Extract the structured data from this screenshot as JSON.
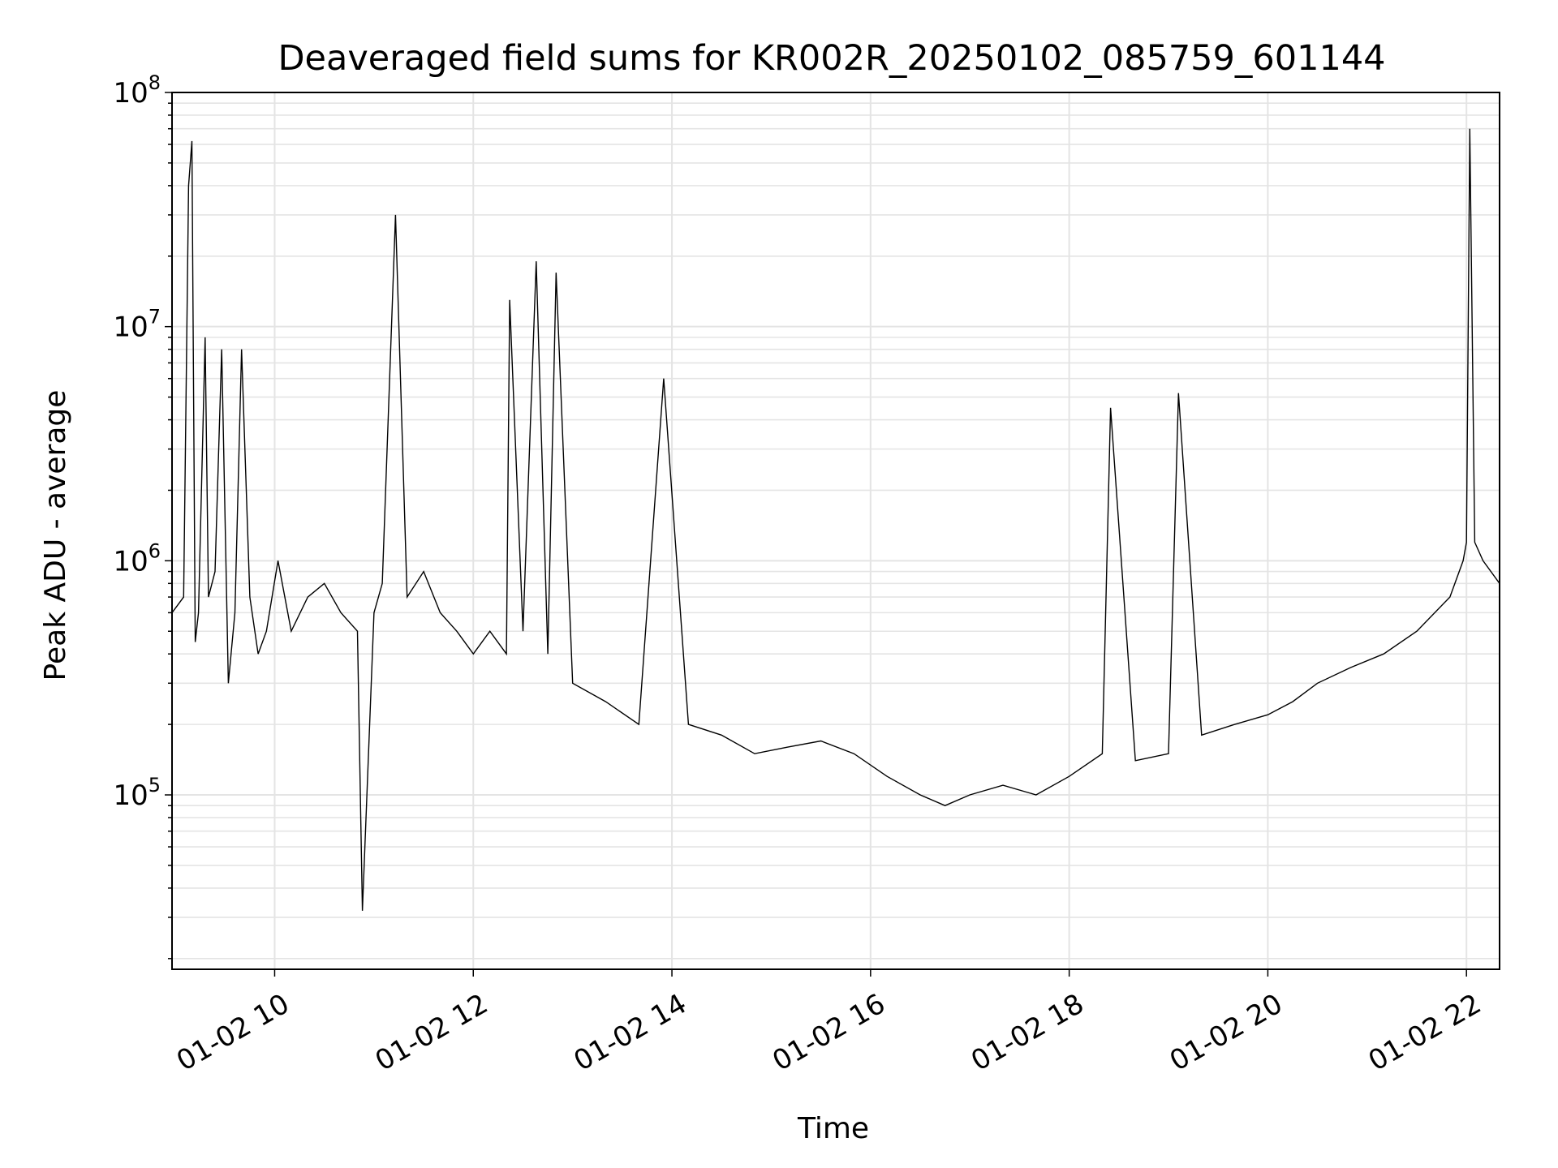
{
  "chart_data": {
    "type": "line",
    "title": "Deaveraged field sums for KR002R_20250102_085759_601144",
    "xlabel": "Time",
    "ylabel": "Peak ADU - average",
    "y_scale": "log",
    "ylim": [
      18000,
      100000000
    ],
    "xlim": [
      "2025-01-02 08:58",
      "2025-01-02 22:20"
    ],
    "grid": true,
    "line_color": "#000000",
    "x_ticks": [
      {
        "time": "2025-01-02 10:00",
        "label": "01-02 10"
      },
      {
        "time": "2025-01-02 12:00",
        "label": "01-02 12"
      },
      {
        "time": "2025-01-02 14:00",
        "label": "01-02 14"
      },
      {
        "time": "2025-01-02 16:00",
        "label": "01-02 16"
      },
      {
        "time": "2025-01-02 18:00",
        "label": "01-02 18"
      },
      {
        "time": "2025-01-02 20:00",
        "label": "01-02 20"
      },
      {
        "time": "2025-01-02 22:00",
        "label": "01-02 22"
      }
    ],
    "y_ticks": [
      {
        "value": 100000,
        "base": "10",
        "exp": "5"
      },
      {
        "value": 1000000,
        "base": "10",
        "exp": "6"
      },
      {
        "value": 10000000,
        "base": "10",
        "exp": "7"
      },
      {
        "value": 100000000,
        "base": "10",
        "exp": "8"
      }
    ],
    "series": [
      {
        "x": [
          "2025-01-02 08:58",
          "2025-01-02 09:05",
          "2025-01-02 09:08",
          "2025-01-02 09:10",
          "2025-01-02 09:12",
          "2025-01-02 09:14",
          "2025-01-02 09:18",
          "2025-01-02 09:20",
          "2025-01-02 09:24",
          "2025-01-02 09:28",
          "2025-01-02 09:32",
          "2025-01-02 09:36",
          "2025-01-02 09:40",
          "2025-01-02 09:45",
          "2025-01-02 09:50",
          "2025-01-02 09:55",
          "2025-01-02 10:02",
          "2025-01-02 10:10",
          "2025-01-02 10:20",
          "2025-01-02 10:30",
          "2025-01-02 10:40",
          "2025-01-02 10:50",
          "2025-01-02 10:53",
          "2025-01-02 11:00",
          "2025-01-02 11:05",
          "2025-01-02 11:13",
          "2025-01-02 11:20",
          "2025-01-02 11:30",
          "2025-01-02 11:40",
          "2025-01-02 11:50",
          "2025-01-02 12:00",
          "2025-01-02 12:10",
          "2025-01-02 12:20",
          "2025-01-02 12:22",
          "2025-01-02 12:30",
          "2025-01-02 12:38",
          "2025-01-02 12:45",
          "2025-01-02 12:50",
          "2025-01-02 13:00",
          "2025-01-02 13:20",
          "2025-01-02 13:40",
          "2025-01-02 13:55",
          "2025-01-02 14:10",
          "2025-01-02 14:30",
          "2025-01-02 14:50",
          "2025-01-02 15:10",
          "2025-01-02 15:30",
          "2025-01-02 15:50",
          "2025-01-02 16:10",
          "2025-01-02 16:30",
          "2025-01-02 16:45",
          "2025-01-02 17:00",
          "2025-01-02 17:20",
          "2025-01-02 17:40",
          "2025-01-02 18:00",
          "2025-01-02 18:20",
          "2025-01-02 18:25",
          "2025-01-02 18:40",
          "2025-01-02 19:00",
          "2025-01-02 19:06",
          "2025-01-02 19:20",
          "2025-01-02 19:40",
          "2025-01-02 20:00",
          "2025-01-02 20:15",
          "2025-01-02 20:30",
          "2025-01-02 20:50",
          "2025-01-02 21:10",
          "2025-01-02 21:30",
          "2025-01-02 21:50",
          "2025-01-02 21:58",
          "2025-01-02 22:00",
          "2025-01-02 22:02",
          "2025-01-02 22:05",
          "2025-01-02 22:10",
          "2025-01-02 22:20"
        ],
        "y": [
          600000,
          700000,
          40000000,
          62000000,
          450000,
          600000,
          9000000,
          700000,
          900000,
          8000000,
          300000,
          600000,
          8000000,
          700000,
          400000,
          500000,
          1000000,
          500000,
          700000,
          800000,
          600000,
          500000,
          32000,
          600000,
          800000,
          30000000,
          700000,
          900000,
          600000,
          500000,
          400000,
          500000,
          400000,
          13000000,
          500000,
          19000000,
          400000,
          17000000,
          300000,
          250000,
          200000,
          6000000,
          200000,
          180000,
          150000,
          160000,
          170000,
          150000,
          120000,
          100000,
          90000,
          100000,
          110000,
          100000,
          120000,
          150000,
          4500000,
          140000,
          150000,
          5200000,
          180000,
          200000,
          220000,
          250000,
          300000,
          350000,
          400000,
          500000,
          700000,
          1000000,
          1200000,
          70000000,
          1200000,
          1000000,
          800000
        ]
      }
    ]
  }
}
